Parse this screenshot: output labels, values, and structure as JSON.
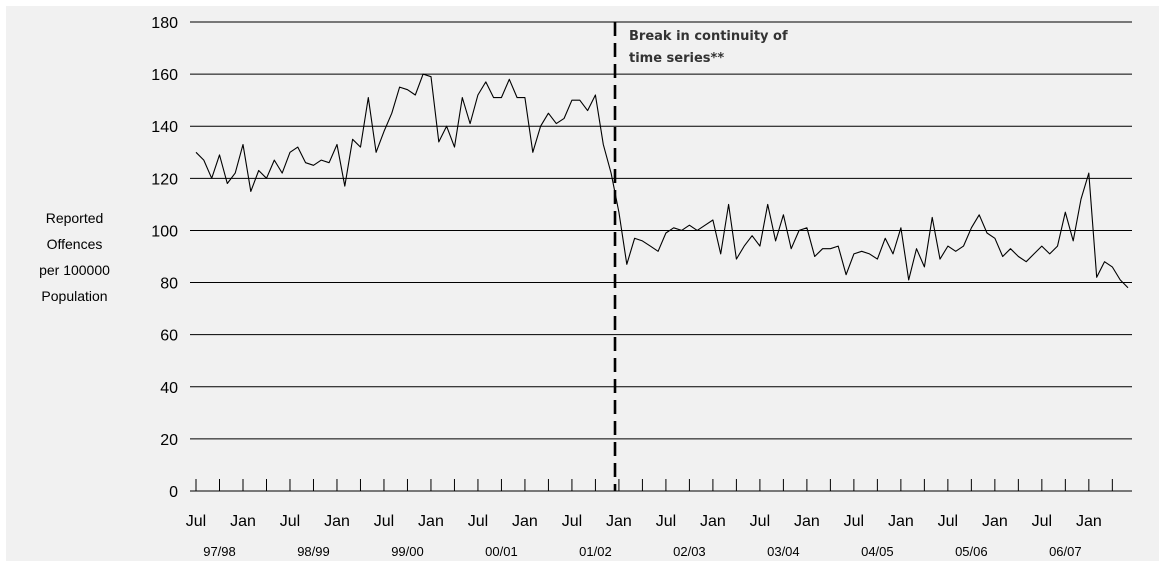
{
  "chart_data": {
    "type": "line",
    "ylabel": [
      "Reported",
      "Offences",
      "per 100000",
      "Population"
    ],
    "ylim": [
      0,
      180
    ],
    "yticks": [
      0,
      20,
      40,
      60,
      80,
      100,
      120,
      140,
      160,
      180
    ],
    "x_month_labels": [
      "Jul",
      "Jan",
      "Jul",
      "Jan",
      "Jul",
      "Jan",
      "Jul",
      "Jan",
      "Jul",
      "Jan",
      "Jul",
      "Jan",
      "Jul",
      "Jan",
      "Jul",
      "Jan",
      "Jul",
      "Jan",
      "Jul",
      "Jan"
    ],
    "x_year_labels": [
      "97/98",
      "98/99",
      "99/00",
      "00/01",
      "01/02",
      "02/03",
      "03/04",
      "04/05",
      "05/06",
      "06/07"
    ],
    "grid": true,
    "break_annotation": [
      "Break in continuity of",
      "time series**"
    ],
    "break_after_index": 53,
    "series": [
      {
        "values": [
          130,
          127,
          120,
          129,
          118,
          122,
          133,
          115,
          123,
          120,
          127,
          122,
          130,
          132,
          126,
          125,
          127,
          126,
          133,
          117,
          135,
          132,
          151,
          130,
          138,
          145,
          155,
          154,
          152,
          160,
          159,
          134,
          140,
          132,
          151,
          141,
          152,
          157,
          151,
          151,
          158,
          151,
          151,
          130,
          140,
          145,
          141,
          143,
          150,
          150,
          146,
          152,
          133,
          122,
          107,
          87,
          97,
          96,
          94,
          92,
          99,
          101,
          100,
          102,
          100,
          102,
          104,
          91,
          110,
          89,
          94,
          98,
          94,
          110,
          96,
          106,
          93,
          100,
          101,
          90,
          93,
          93,
          94,
          83,
          91,
          92,
          91,
          89,
          97,
          91,
          101,
          81,
          93,
          86,
          105,
          89,
          94,
          92,
          94,
          101,
          106,
          99,
          97,
          90,
          93,
          90,
          88,
          91,
          94,
          91,
          94,
          107,
          96,
          112,
          122,
          82,
          88,
          86,
          81,
          78
        ]
      }
    ]
  }
}
